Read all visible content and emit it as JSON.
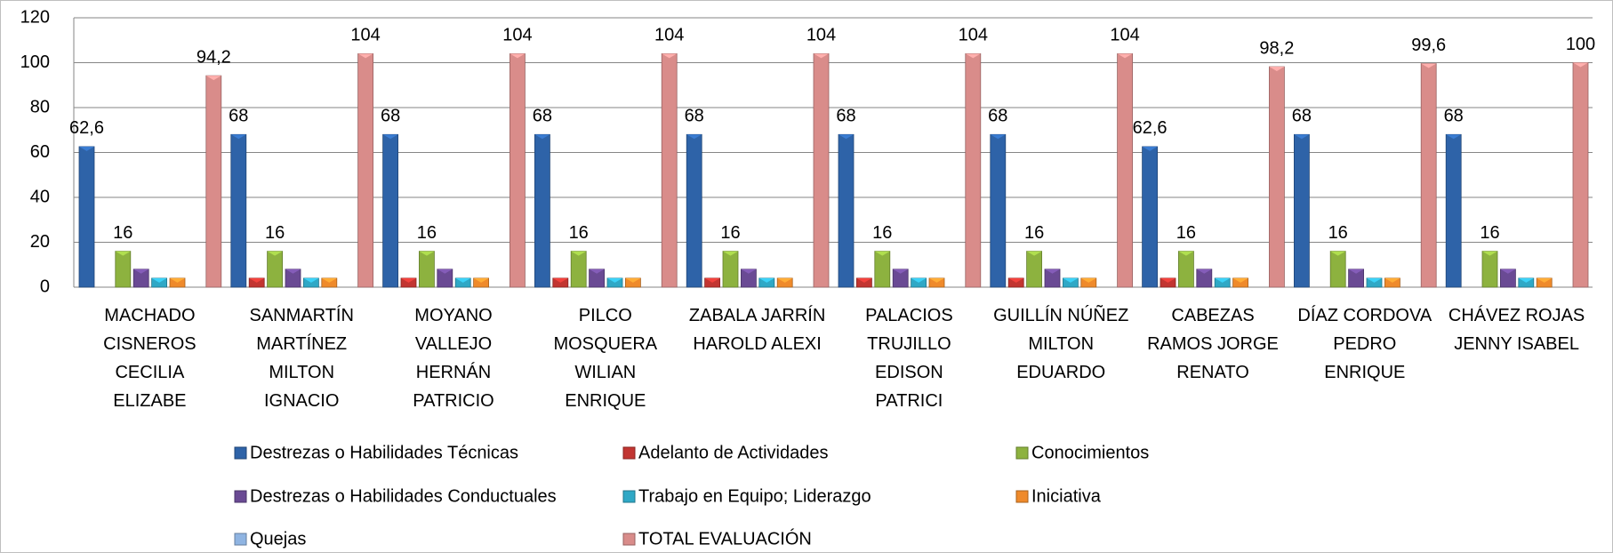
{
  "chart_data": {
    "type": "bar",
    "categories": [
      "MACHADO\nCISNEROS\nCECILIA\nELIZABE",
      "SANMARTÍN\nMARTÍNEZ\nMILTON\nIGNACIO",
      "MOYANO\nVALLEJO\nHERNÁN\nPATRICIO",
      "PILCO\nMOSQUERA\nWILIAN\nENRIQUE",
      "ZABALA JARRÍN\nHAROLD ALEXI",
      "PALACIOS\nTRUJILLO\nEDISON\nPATRICI",
      "GUILLÍN NÚÑEZ\nMILTON\nEDUARDO",
      "CABEZAS\nRAMOS  JORGE\nRENATO",
      "DÍAZ CORDOVA\nPEDRO\nENRIQUE",
      "CHÁVEZ ROJAS\nJENNY ISABEL"
    ],
    "series": [
      {
        "name": "Destrezas o Habilidades Técnicas",
        "color": "#2e63a8",
        "show_labels": true,
        "values": [
          62.6,
          68,
          68,
          68,
          68,
          68,
          68,
          62.6,
          68,
          68
        ],
        "value_labels": [
          "62,6",
          "68",
          "68",
          "68",
          "68",
          "68",
          "68",
          "62,6",
          "68",
          "68"
        ]
      },
      {
        "name": "Adelanto de Actividades",
        "color": "#c23531",
        "values": [
          0,
          4,
          4,
          4,
          4,
          4,
          4,
          4,
          0,
          0
        ]
      },
      {
        "name": "Conocimientos",
        "color": "#8db23f",
        "show_labels": true,
        "values": [
          16,
          16,
          16,
          16,
          16,
          16,
          16,
          16,
          16,
          16
        ]
      },
      {
        "name": "Destrezas o Habilidades Conductuales",
        "color": "#6a4a94",
        "values": [
          8,
          8,
          8,
          8,
          8,
          8,
          8,
          8,
          8,
          8
        ]
      },
      {
        "name": "Trabajo en Equipo; Liderazgo",
        "color": "#2fa8c6",
        "values": [
          4,
          4,
          4,
          4,
          4,
          4,
          4,
          4,
          4,
          4
        ]
      },
      {
        "name": "Iniciativa",
        "color": "#ef8a2b",
        "values": [
          4,
          4,
          4,
          4,
          4,
          4,
          4,
          4,
          4,
          4
        ]
      },
      {
        "name": "Quejas",
        "color": "#8fb4e2",
        "values": [
          0,
          0,
          0,
          0,
          0,
          0,
          0,
          0,
          0,
          0
        ]
      },
      {
        "name": "TOTAL EVALUACIÓN",
        "color": "#d98c8a",
        "show_labels": true,
        "values": [
          94.2,
          104,
          104,
          104,
          104,
          104,
          104,
          98.2,
          99.6,
          100
        ],
        "value_labels": [
          "94,2",
          "104",
          "104",
          "104",
          "104",
          "104",
          "104",
          "98,2",
          "99,6",
          "100"
        ]
      }
    ],
    "ylim": [
      0,
      120
    ],
    "yticks": [
      0,
      20,
      40,
      60,
      80,
      100,
      120
    ],
    "grid": true,
    "legend": "bottom"
  }
}
